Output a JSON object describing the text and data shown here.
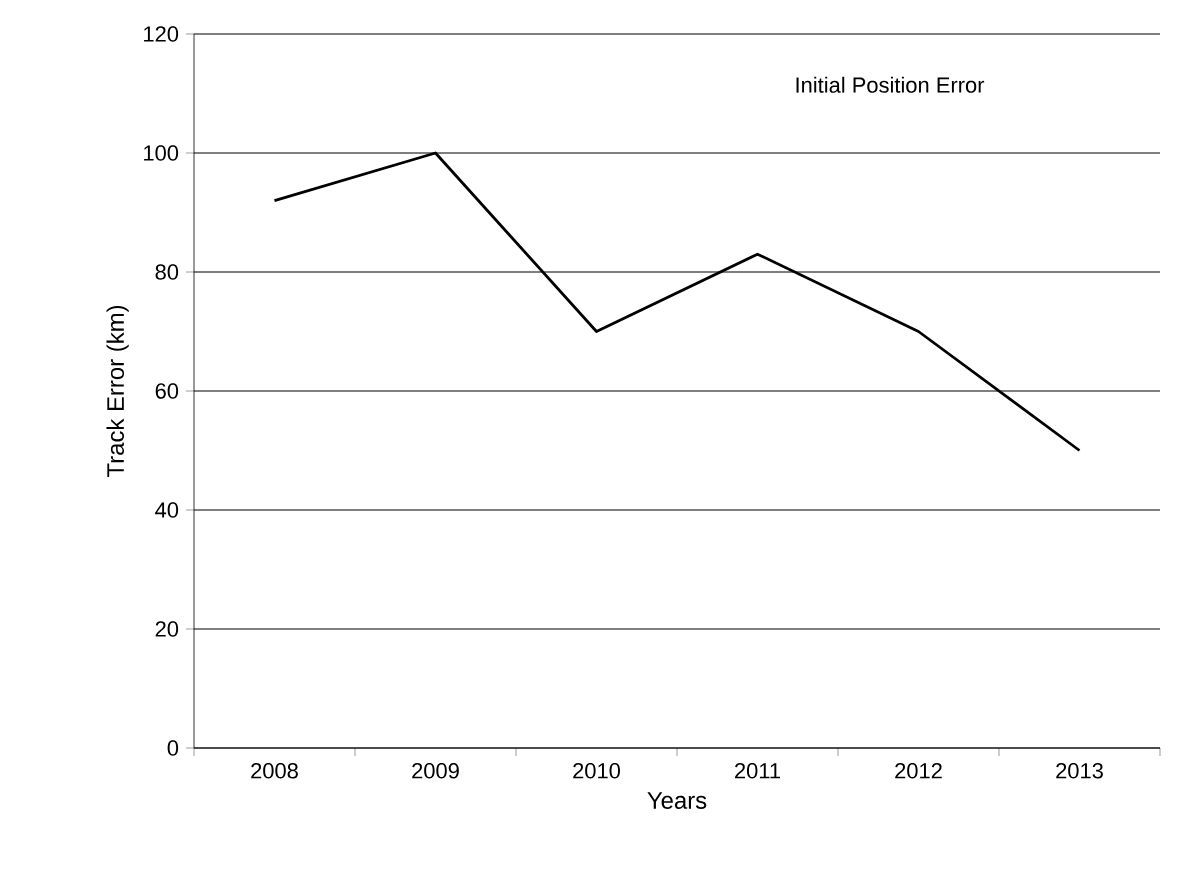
{
  "chart_data": {
    "type": "line",
    "xlabel": "Years",
    "ylabel": "Track Error (km)",
    "categories": [
      "2008",
      "2009",
      "2010",
      "2011",
      "2012",
      "2013"
    ],
    "series": [
      {
        "color": "#000000",
        "values": [
          92,
          100,
          70,
          83,
          70,
          50
        ]
      }
    ],
    "ylim": [
      0,
      120
    ],
    "yticks": [
      0,
      20,
      40,
      60,
      80,
      100,
      120
    ],
    "grid": "y",
    "marker": "none",
    "line_style": "solid",
    "annotations": [
      "Initial Position Error"
    ]
  }
}
